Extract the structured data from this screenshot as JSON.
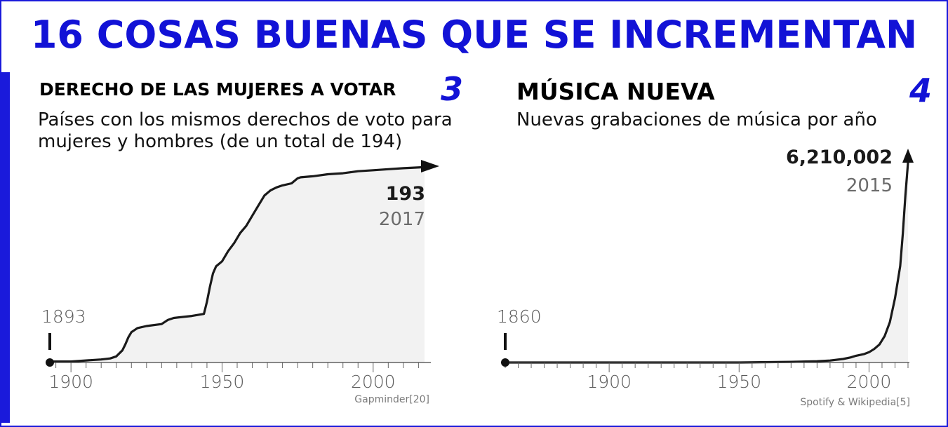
{
  "header": {
    "title": "16 COSAS BUENAS QUE SE INCREMENTAN"
  },
  "panels": [
    {
      "title": "DERECHO DE LAS MUJERES A VOTAR",
      "number": "3",
      "subtitle_line1": "Países con los mismos derechos de voto para",
      "subtitle_line2": "mujeres y hombres (de un total de 194)",
      "start_label": "1893",
      "end_value_label": "193",
      "end_year_label": "2017",
      "source": "Gapminder[20]"
    },
    {
      "title": "MÚSICA NUEVA",
      "number": "4",
      "subtitle_line1": "Nuevas grabaciones de música por año",
      "start_label": "1860",
      "end_value_label": "6,210,002",
      "end_year_label": "2015",
      "source": "Spotify & Wikipedia[5]"
    }
  ],
  "colors": {
    "accent": "#1212d6",
    "frame": "#1a1adb",
    "line": "#1a1a1a",
    "fill": "#f2f2f2"
  },
  "chart_data": [
    {
      "type": "area",
      "title": "DERECHO DE LAS MUJERES A VOTAR",
      "subtitle": "Países con los mismos derechos de voto para mujeres y hombres (de un total de 194)",
      "xlabel": "",
      "ylabel": "",
      "xlim": [
        1893,
        2017
      ],
      "ylim": [
        0,
        194
      ],
      "xticks": [
        1900,
        1950,
        2000
      ],
      "grid": false,
      "x": [
        1893,
        1900,
        1905,
        1910,
        1913,
        1915,
        1917,
        1918,
        1919,
        1920,
        1921,
        1922,
        1925,
        1930,
        1932,
        1934,
        1940,
        1944,
        1945,
        1946,
        1947,
        1948,
        1950,
        1952,
        1954,
        1956,
        1958,
        1960,
        1962,
        1964,
        1966,
        1968,
        1970,
        1973,
        1975,
        1976,
        1980,
        1985,
        1990,
        1995,
        2000,
        2005,
        2010,
        2017
      ],
      "values": [
        1,
        1,
        2,
        3,
        4,
        6,
        12,
        18,
        25,
        30,
        32,
        34,
        36,
        38,
        42,
        44,
        46,
        48,
        60,
        75,
        88,
        95,
        100,
        110,
        118,
        128,
        135,
        145,
        155,
        165,
        170,
        173,
        175,
        177,
        182,
        183,
        184,
        186,
        187,
        189,
        190,
        191,
        192,
        193
      ],
      "annotations": [
        {
          "x": 1893,
          "text": "1893"
        },
        {
          "x": 2017,
          "value": 193,
          "text": "193",
          "year": "2017"
        }
      ],
      "source": "Gapminder[20]"
    },
    {
      "type": "area",
      "title": "MÚSICA NUEVA",
      "subtitle": "Nuevas grabaciones de música por año",
      "xlabel": "",
      "ylabel": "",
      "xlim": [
        1860,
        2015
      ],
      "ylim": [
        0,
        6210002
      ],
      "xticks": [
        1900,
        1950,
        2000
      ],
      "grid": false,
      "x": [
        1860,
        1900,
        1950,
        1970,
        1980,
        1985,
        1990,
        1993,
        1995,
        1998,
        2000,
        2002,
        2004,
        2006,
        2008,
        2010,
        2012,
        2013,
        2014,
        2015
      ],
      "values": [
        0,
        0,
        0,
        20000,
        40000,
        60000,
        110000,
        160000,
        210000,
        260000,
        320000,
        420000,
        560000,
        820000,
        1250000,
        2000000,
        3000000,
        4000000,
        5200000,
        6210002
      ],
      "annotations": [
        {
          "x": 1860,
          "text": "1860"
        },
        {
          "x": 2015,
          "value": 6210002,
          "text": "6,210,002",
          "year": "2015"
        }
      ],
      "source": "Spotify & Wikipedia[5]"
    }
  ]
}
